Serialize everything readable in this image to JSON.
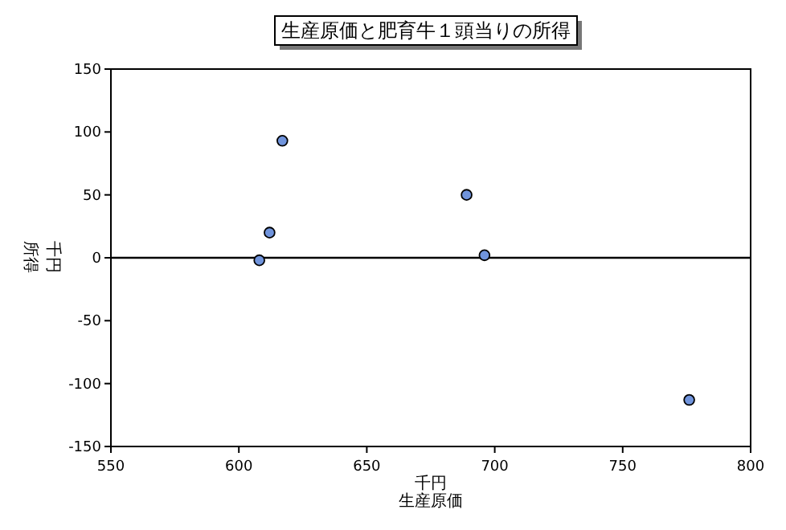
{
  "chart_data": {
    "type": "scatter",
    "title": "生産原価と肥育牛１頭当りの所得",
    "xlabel": "生産原価",
    "ylabel": "所得",
    "annotations": [
      "千円",
      "千円"
    ],
    "x": [
      617,
      689,
      612,
      608,
      696,
      776
    ],
    "values": [
      93,
      50,
      20,
      -2,
      2,
      -113
    ],
    "color": "#7094dc",
    "marker": "circle",
    "xlim": [
      550,
      800
    ],
    "xticks": [
      550,
      600,
      650,
      700,
      750,
      800
    ],
    "ylim": [
      -150,
      150
    ],
    "yticks": [
      -150,
      -100,
      -50,
      0,
      50,
      100,
      150
    ],
    "ref_lines": [
      {
        "axis": "y",
        "value": 0,
        "color": "#000000"
      }
    ],
    "grid": false
  }
}
